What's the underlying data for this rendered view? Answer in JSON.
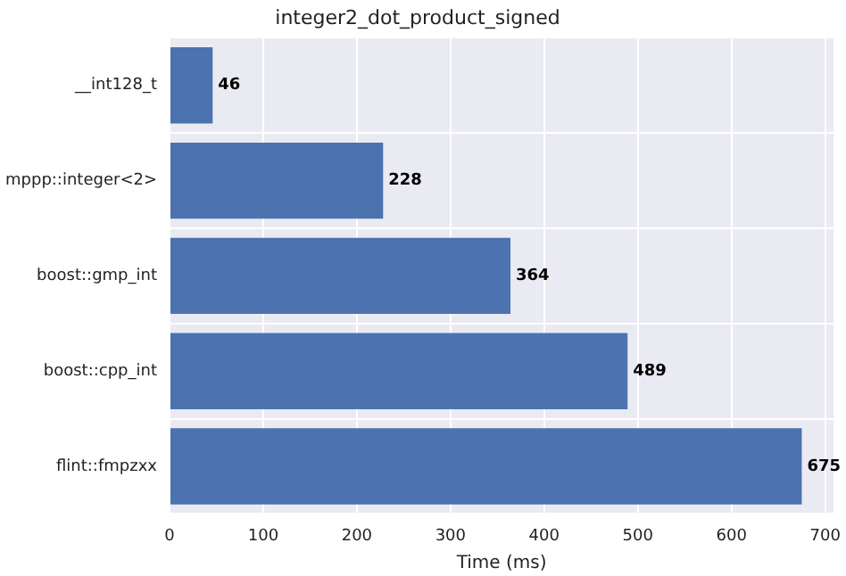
{
  "chart_data": {
    "type": "bar",
    "orientation": "horizontal",
    "title": "integer2_dot_product_signed",
    "xlabel": "Time (ms)",
    "categories": [
      "__int128_t",
      "mppp::integer<2>",
      "boost::gmp_int",
      "boost::cpp_int",
      "flint::fmpzxx"
    ],
    "values": [
      46,
      228,
      364,
      489,
      675
    ],
    "color": "#4c72b0",
    "xlim": [
      0,
      709
    ],
    "xticks": [
      0,
      100,
      200,
      300,
      400,
      500,
      600,
      700
    ],
    "grid": true,
    "data_labels": true
  }
}
